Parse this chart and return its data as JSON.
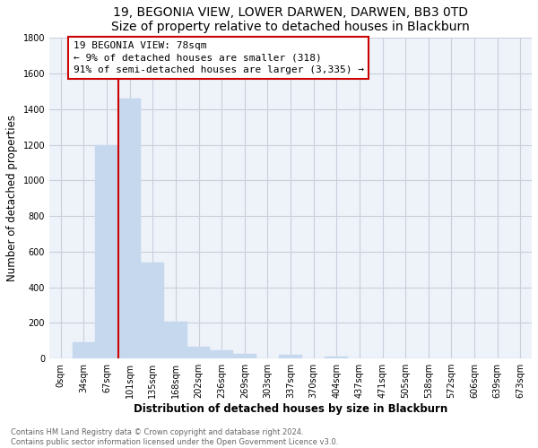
{
  "title": "19, BEGONIA VIEW, LOWER DARWEN, DARWEN, BB3 0TD",
  "subtitle": "Size of property relative to detached houses in Blackburn",
  "xlabel": "Distribution of detached houses by size in Blackburn",
  "ylabel": "Number of detached properties",
  "bar_labels": [
    "0sqm",
    "34sqm",
    "67sqm",
    "101sqm",
    "135sqm",
    "168sqm",
    "202sqm",
    "236sqm",
    "269sqm",
    "303sqm",
    "337sqm",
    "370sqm",
    "404sqm",
    "437sqm",
    "471sqm",
    "505sqm",
    "538sqm",
    "572sqm",
    "606sqm",
    "639sqm",
    "673sqm"
  ],
  "bar_values": [
    0,
    90,
    1200,
    1460,
    540,
    205,
    65,
    48,
    28,
    0,
    20,
    0,
    13,
    0,
    0,
    0,
    0,
    0,
    0,
    0,
    0
  ],
  "bar_color": "#c5d8ee",
  "bar_edge_color": "#c5d8ee",
  "property_line_color": "#cc0000",
  "annotation_line1": "19 BEGONIA VIEW: 78sqm",
  "annotation_line2": "← 9% of detached houses are smaller (318)",
  "annotation_line3": "91% of semi-detached houses are larger (3,335) →",
  "annotation_box_color": "#ffffff",
  "annotation_box_edge": "#cc0000",
  "ylim": [
    0,
    1800
  ],
  "yticks": [
    0,
    200,
    400,
    600,
    800,
    1000,
    1200,
    1400,
    1600,
    1800
  ],
  "footer_line1": "Contains HM Land Registry data © Crown copyright and database right 2024.",
  "footer_line2": "Contains public sector information licensed under the Open Government Licence v3.0.",
  "bg_color": "#ffffff",
  "plot_bg_color": "#eef2f9",
  "grid_color": "#c8d0dc",
  "title_fontsize": 10,
  "axis_label_fontsize": 8.5,
  "tick_fontsize": 7,
  "annotation_fontsize": 8,
  "footer_fontsize": 6
}
